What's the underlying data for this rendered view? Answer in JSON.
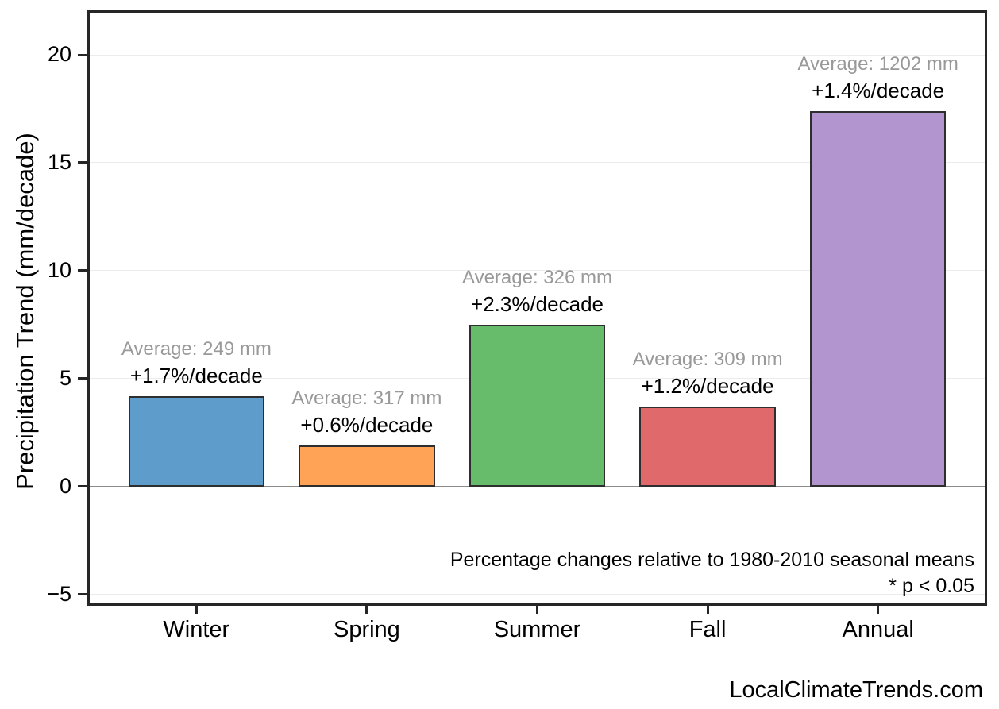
{
  "chart_data": {
    "type": "bar",
    "title": "",
    "xlabel": "",
    "ylabel": "Precipitation Trend (mm/decade)",
    "categories": [
      "Winter",
      "Spring",
      "Summer",
      "Fall",
      "Annual"
    ],
    "values": [
      4.2,
      1.9,
      7.5,
      3.7,
      17.4
    ],
    "bars": [
      {
        "category": "Winter",
        "value": 4.2,
        "average_mm": 249,
        "average_label": "Average: 249 mm",
        "trend_label": "+1.7%/decade",
        "color": "#5E9DCB"
      },
      {
        "category": "Spring",
        "value": 1.9,
        "average_mm": 317,
        "average_label": "Average: 317 mm",
        "trend_label": "+0.6%/decade",
        "color": "#FFA456"
      },
      {
        "category": "Summer",
        "value": 7.5,
        "average_mm": 326,
        "average_label": "Average: 326 mm",
        "trend_label": "+2.3%/decade",
        "color": "#66BC6A"
      },
      {
        "category": "Fall",
        "value": 3.7,
        "average_mm": 309,
        "average_label": "Average: 309 mm",
        "trend_label": "+1.2%/decade",
        "color": "#E0696B"
      },
      {
        "category": "Annual",
        "value": 17.4,
        "average_mm": 1202,
        "average_label": "Average: 1202 mm",
        "trend_label": "+1.4%/decade",
        "color": "#B294CE"
      }
    ],
    "yticks": [
      {
        "value": 20,
        "label": "20"
      },
      {
        "value": 15,
        "label": "15"
      },
      {
        "value": 10,
        "label": "10"
      },
      {
        "value": 5,
        "label": "5"
      },
      {
        "value": 0,
        "label": "0"
      },
      {
        "value": -5,
        "label": "−5"
      }
    ],
    "ylim": [
      -5.52,
      22.06
    ],
    "grid": "horizontal",
    "legend": "none",
    "zero_line": true,
    "notes": {
      "line1": "Percentage changes relative to 1980-2010 seasonal means",
      "line2": "* p < 0.05"
    },
    "colors": {
      "grid": "#ececec",
      "zero_line": "#8a8a8a",
      "bar_edge": "#2e2e2e",
      "spine": "#262626",
      "annotation_average": "#999999",
      "annotation_trend": "#000000"
    }
  },
  "footer": {
    "watermark": "LocalClimateTrends.com"
  }
}
